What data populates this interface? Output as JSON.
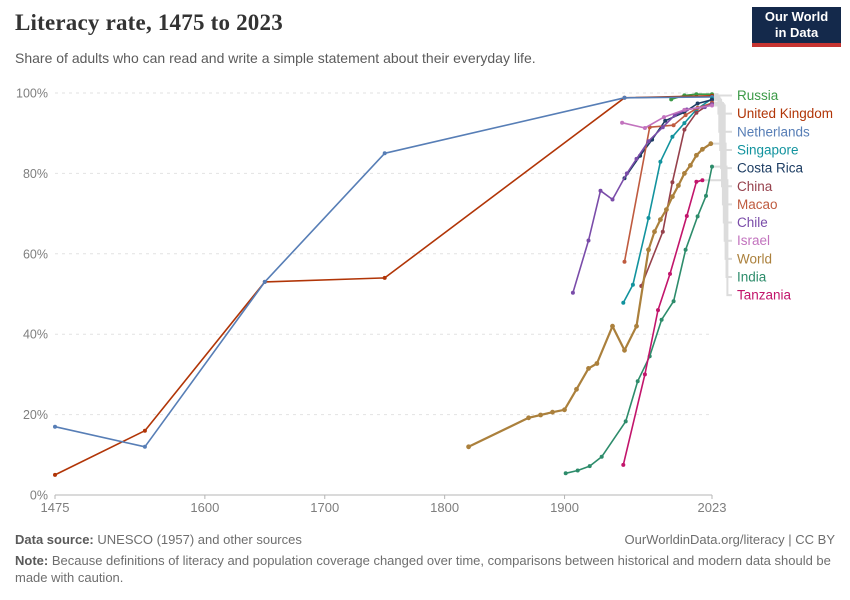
{
  "header": {
    "title": "Literacy rate, 1475 to 2023",
    "subtitle": "Share of adults who can read and write a simple statement about their everyday life."
  },
  "logo": {
    "line1": "Our World",
    "line2": "in Data",
    "bg_color": "#14294b",
    "accent_color": "#c63431"
  },
  "footer": {
    "data_source_label": "Data source:",
    "data_source": "UNESCO (1957) and other sources",
    "link": "OurWorldinData.org/literacy | CC BY",
    "note_label": "Note:",
    "note": "Because definitions of literacy and population coverage changed over time, comparisons between historical and modern data should be made with caution."
  },
  "chart_data": {
    "type": "line",
    "title": "Literacy rate, 1475 to 2023",
    "xlabel": "",
    "ylabel": "",
    "x_range": [
      1475,
      2023
    ],
    "y_range": [
      0,
      100
    ],
    "x_ticks": [
      1475,
      1600,
      1700,
      1800,
      1900,
      2023
    ],
    "x_tick_labels": [
      "1475",
      "1600",
      "1700",
      "1800",
      "1900",
      "2023"
    ],
    "y_ticks": [
      0,
      20,
      40,
      60,
      80,
      100
    ],
    "y_tick_labels": [
      "0%",
      "20%",
      "40%",
      "60%",
      "80%",
      "100%"
    ],
    "grid": "horizontal-dashed",
    "legend_position": "right",
    "grid_color": "#e2e2e2",
    "axis_color": "#b5b5b5",
    "tick_label_color": "#7e7e7e",
    "connector_color": "#dcdcdc",
    "series": [
      {
        "name": "Russia",
        "color": "#3c9a47",
        "points": [
          [
            1989,
            98.4
          ],
          [
            2000,
            99.4
          ],
          [
            2010,
            99.7
          ],
          [
            2023,
            99.7
          ]
        ]
      },
      {
        "name": "United Kingdom",
        "color": "#b13507",
        "points": [
          [
            1475,
            5
          ],
          [
            1550,
            16
          ],
          [
            1650,
            53
          ],
          [
            1750,
            54
          ],
          [
            1950,
            98.8
          ],
          [
            2023,
            99.3
          ]
        ]
      },
      {
        "name": "Netherlands",
        "color": "#577eb6",
        "points": [
          [
            1475,
            17
          ],
          [
            1550,
            12
          ],
          [
            1650,
            53
          ],
          [
            1750,
            85
          ],
          [
            1950,
            98.8
          ],
          [
            2023,
            99.0
          ]
        ]
      },
      {
        "name": "Singapore",
        "color": "#12939e",
        "points": [
          [
            1949,
            47.8
          ],
          [
            1957,
            52.3
          ],
          [
            1970,
            68.9
          ],
          [
            1980,
            82.9
          ],
          [
            1990,
            89.1
          ],
          [
            2000,
            92.5
          ],
          [
            2010,
            95.9
          ],
          [
            2023,
            98.6
          ]
        ]
      },
      {
        "name": "Costa Rica",
        "color": "#1d3d63",
        "points": [
          [
            1950,
            78.8
          ],
          [
            1963,
            84.4
          ],
          [
            1973,
            88.4
          ],
          [
            1984,
            93.1
          ],
          [
            2000,
            95.2
          ],
          [
            2011,
            97.4
          ],
          [
            2023,
            98.3
          ]
        ]
      },
      {
        "name": "China",
        "color": "#96414c",
        "points": [
          [
            1964,
            52
          ],
          [
            1982,
            65.5
          ],
          [
            1990,
            77.8
          ],
          [
            2000,
            90.9
          ],
          [
            2010,
            95.1
          ],
          [
            2023,
            97.6
          ]
        ]
      },
      {
        "name": "Macao",
        "color": "#bf5b3f",
        "points": [
          [
            1950,
            58
          ],
          [
            1971,
            91.5
          ],
          [
            1991,
            92
          ],
          [
            2001,
            94.5
          ],
          [
            2011,
            96.3
          ],
          [
            2023,
            97.5
          ]
        ]
      },
      {
        "name": "Chile",
        "color": "#7a4ca9",
        "points": [
          [
            1907,
            50.3
          ],
          [
            1920,
            63.3
          ],
          [
            1930,
            75.7
          ],
          [
            1940,
            73.5
          ],
          [
            1952,
            80
          ],
          [
            1960,
            83.6
          ],
          [
            1970,
            88
          ],
          [
            1982,
            91.5
          ],
          [
            1992,
            94.5
          ],
          [
            2002,
            95.9
          ],
          [
            2017,
            96.5
          ],
          [
            2023,
            97.2
          ]
        ]
      },
      {
        "name": "Israel",
        "color": "#c273be",
        "points": [
          [
            1948,
            92.6
          ],
          [
            1967,
            91.3
          ],
          [
            1983,
            94
          ],
          [
            2000,
            95.8
          ],
          [
            2023,
            96.9
          ]
        ]
      },
      {
        "name": "World",
        "color": "#ab803c",
        "thick": true,
        "points": [
          [
            1820,
            12
          ],
          [
            1870,
            19.2
          ],
          [
            1880,
            19.9
          ],
          [
            1890,
            20.6
          ],
          [
            1900,
            21.2
          ],
          [
            1910,
            26.3
          ],
          [
            1920,
            31.5
          ],
          [
            1927,
            32.7
          ],
          [
            1940,
            42
          ],
          [
            1950,
            36
          ],
          [
            1960,
            42
          ],
          [
            1970,
            61
          ],
          [
            1975,
            65.5
          ],
          [
            1980,
            68.5
          ],
          [
            1985,
            71
          ],
          [
            1990,
            74.2
          ],
          [
            1995,
            77
          ],
          [
            2000,
            80
          ],
          [
            2005,
            82
          ],
          [
            2010,
            84.5
          ],
          [
            2015,
            86
          ],
          [
            2022,
            87.4
          ]
        ]
      },
      {
        "name": "India",
        "color": "#2d8c6b",
        "points": [
          [
            1901,
            5.4
          ],
          [
            1911,
            6.1
          ],
          [
            1921,
            7.2
          ],
          [
            1931,
            9.5
          ],
          [
            1951,
            18.3
          ],
          [
            1961,
            28.3
          ],
          [
            1971,
            34.5
          ],
          [
            1981,
            43.6
          ],
          [
            1991,
            48.2
          ],
          [
            2001,
            61
          ],
          [
            2011,
            69.3
          ],
          [
            2018,
            74.4
          ],
          [
            2023,
            81.7
          ]
        ]
      },
      {
        "name": "Tanzania",
        "color": "#c2156b",
        "points": [
          [
            1949,
            7.5
          ],
          [
            1967,
            30
          ],
          [
            1978,
            46
          ],
          [
            1988,
            55
          ],
          [
            2002,
            69.4
          ],
          [
            2010,
            77.9
          ],
          [
            2015,
            78.3
          ]
        ]
      }
    ]
  }
}
